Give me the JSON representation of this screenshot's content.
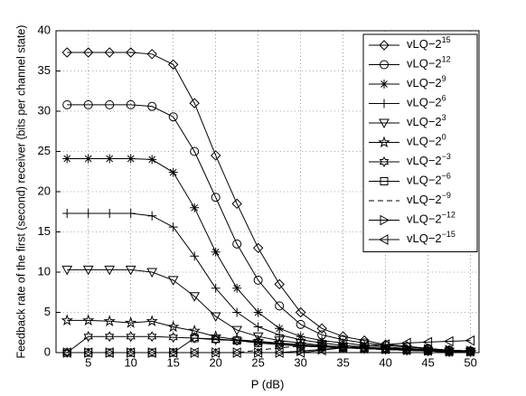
{
  "chart_data": {
    "type": "line",
    "x_label": "P (dB)",
    "y_label": "Feedback rate of the first (second) receiver (bits per channel state)",
    "x": [
      2.5,
      5,
      7.5,
      10,
      12.5,
      15,
      17.5,
      20,
      22.5,
      25,
      27.5,
      30,
      32.5,
      35,
      37.5,
      40,
      42.5,
      45,
      47.5,
      50
    ],
    "xlim": [
      1.2,
      51
    ],
    "xticks": [
      5,
      10,
      15,
      20,
      25,
      30,
      35,
      40,
      45,
      50
    ],
    "ylim": [
      0,
      40
    ],
    "yticks": [
      0,
      5,
      10,
      15,
      20,
      25,
      30,
      35,
      40
    ],
    "grid": true,
    "legend": "upper right",
    "series": [
      {
        "name": "vLQ−2",
        "exponent": "15",
        "color": "#000000",
        "marker": "diamond",
        "style": "solid",
        "values": [
          37.3,
          37.3,
          37.3,
          37.3,
          37.1,
          35.8,
          31,
          24.5,
          18.5,
          13,
          8.5,
          5,
          3,
          2,
          1.5,
          1,
          0.8,
          0.5,
          0.3,
          0.2
        ]
      },
      {
        "name": "vLQ−2",
        "exponent": "12",
        "color": "#000000",
        "marker": "circle",
        "style": "solid",
        "values": [
          30.8,
          30.8,
          30.8,
          30.8,
          30.6,
          29.3,
          25,
          19.3,
          13.5,
          9,
          5.8,
          3.5,
          2.2,
          1.6,
          1.2,
          0.9,
          0.7,
          0.5,
          0.3,
          0.2
        ]
      },
      {
        "name": "vLQ−2",
        "exponent": "9",
        "color": "#000000",
        "marker": "asterisk",
        "style": "solid",
        "values": [
          24.1,
          24.1,
          24.1,
          24.1,
          24,
          22.4,
          18,
          12.5,
          8,
          5,
          3,
          2,
          1.5,
          1.2,
          0.9,
          0.7,
          0.5,
          0.4,
          0.3,
          0.2
        ]
      },
      {
        "name": "vLQ−2",
        "exponent": "6",
        "color": "#000000",
        "marker": "plus",
        "style": "solid",
        "values": [
          17.3,
          17.3,
          17.3,
          17.3,
          17,
          15.6,
          12,
          8,
          5,
          3.2,
          2.2,
          1.6,
          1.2,
          0.9,
          0.7,
          0.5,
          0.4,
          0.3,
          0.2,
          0.1
        ]
      },
      {
        "name": "vLQ−2",
        "exponent": "3",
        "color": "#000000",
        "marker": "triangle-down",
        "style": "solid",
        "values": [
          10.3,
          10.3,
          10.3,
          10.3,
          10,
          9,
          7,
          4.5,
          2.8,
          2,
          1.5,
          1.2,
          0.9,
          0.7,
          0.5,
          0.4,
          0.3,
          0.2,
          0.1,
          0.1
        ]
      },
      {
        "name": "vLQ−2",
        "exponent": "0",
        "color": "#000000",
        "marker": "pentagram",
        "style": "solid",
        "values": [
          4,
          4,
          3.9,
          3.7,
          3.9,
          3.2,
          2.7,
          2,
          1.6,
          1.4,
          1.2,
          1,
          0.8,
          0.6,
          0.5,
          0.4,
          0.3,
          0.2,
          0.1,
          0.1
        ]
      },
      {
        "name": "vLQ−2",
        "exponent": "−3",
        "color": "#000000",
        "marker": "hexagram",
        "style": "solid",
        "values": [
          0,
          2,
          2,
          2,
          2,
          1.9,
          1.8,
          1.6,
          1.5,
          1.3,
          1.1,
          0.9,
          0.7,
          0.6,
          0.5,
          0.4,
          0.3,
          0.2,
          0.1,
          0.1
        ]
      },
      {
        "name": "vLQ−2",
        "exponent": "−6",
        "color": "#000000",
        "marker": "square",
        "style": "solid",
        "values": [
          0,
          0,
          0,
          0,
          0,
          0,
          1.8,
          1.7,
          1.5,
          1.2,
          1,
          0.8,
          0.7,
          0.6,
          0.5,
          0.4,
          0.3,
          0.2,
          0.1,
          0.1
        ]
      },
      {
        "name": "vLQ−2",
        "exponent": "−9",
        "color": "#000000",
        "marker": "none",
        "style": "dashed",
        "values": [
          0,
          0,
          0,
          0,
          0,
          0,
          0,
          0,
          0,
          0.3,
          0.6,
          0.8,
          0.7,
          0.6,
          0.5,
          0.4,
          0.3,
          0.2,
          0.1,
          0.1
        ]
      },
      {
        "name": "vLQ−2",
        "exponent": "−12",
        "color": "#000000",
        "marker": "triangle-right",
        "style": "solid",
        "values": [
          0,
          0,
          0,
          0,
          0,
          0,
          0,
          0,
          0,
          0,
          0,
          0.2,
          0.4,
          0.6,
          0.6,
          0.5,
          0.5,
          0.4,
          0.3,
          0.2
        ]
      },
      {
        "name": "vLQ−2",
        "exponent": "−15",
        "color": "#000000",
        "marker": "triangle-left",
        "style": "solid",
        "values": [
          0,
          0,
          0,
          0,
          0,
          0,
          0,
          0,
          0,
          0,
          0,
          0,
          0.3,
          0.6,
          0.8,
          1,
          1.2,
          1.3,
          1.4,
          1.5
        ]
      }
    ]
  }
}
